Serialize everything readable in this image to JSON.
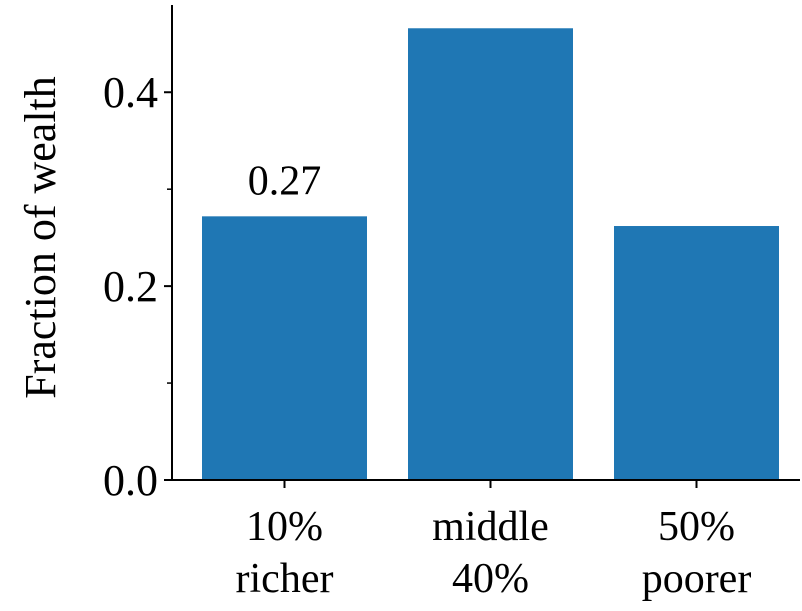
{
  "chart_data": {
    "type": "bar",
    "categories": [
      [
        "10%",
        "richer"
      ],
      [
        "middle",
        "40%"
      ],
      [
        "50%",
        "poorer"
      ]
    ],
    "values": [
      0.272,
      0.466,
      0.262
    ],
    "data_labels": [
      "0.27",
      "",
      ""
    ],
    "title": "",
    "xlabel": "",
    "ylabel": "Fraction of wealth",
    "ylim": [
      0,
      0.49
    ],
    "yticks": [
      0.0,
      0.2,
      0.4
    ],
    "ytick_labels": [
      "0.0",
      "0.2",
      "0.4"
    ],
    "yticks_minor": [
      0.1,
      0.3
    ],
    "grid": false,
    "legend": "none",
    "colors": {
      "bar": "#1f77b4",
      "axis": "#000000"
    }
  }
}
